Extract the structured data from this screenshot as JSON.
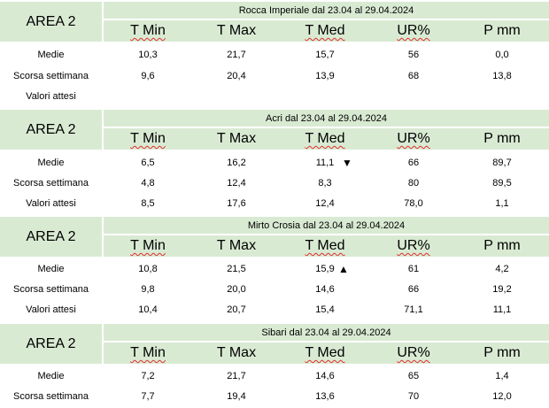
{
  "headers": [
    "T Min",
    "T Max",
    "T Med",
    "UR%",
    "P mm"
  ],
  "blocks": [
    {
      "area": "AREA 2",
      "title": "Rocca Imperiale  dal 23.04 al 29.04.2024",
      "rows": [
        {
          "label": "Medie",
          "values": [
            "10,3",
            "21,7",
            "15,7",
            "56",
            "0,0"
          ]
        },
        {
          "label": "Scorsa settimana",
          "values": [
            "9,6",
            "20,4",
            "13,9",
            "68",
            "13,8"
          ]
        },
        {
          "label": "Valori attesi",
          "values": [
            "",
            "",
            "",
            "",
            ""
          ]
        }
      ]
    },
    {
      "area": "AREA 2",
      "title": "Acri dal 23.04 al 29.04.2024",
      "arrow": "▼",
      "rows": [
        {
          "label": "Medie",
          "values": [
            "6,5",
            "16,2",
            "11,1",
            "66",
            "89,7"
          ]
        },
        {
          "label": "Scorsa settimana",
          "values": [
            "4,8",
            "12,4",
            "8,3",
            "80",
            "89,5"
          ]
        },
        {
          "label": "Valori attesi",
          "values": [
            "8,5",
            "17,6",
            "12,4",
            "78,0",
            "1,1"
          ]
        }
      ]
    },
    {
      "area": "AREA 2",
      "title": "Mirto Crosia dal 23.04 al 29.04.2024",
      "arrow": "▲",
      "rows": [
        {
          "label": "Medie",
          "values": [
            "10,8",
            "21,5",
            "15,9",
            "61",
            "4,2"
          ]
        },
        {
          "label": "Scorsa settimana",
          "values": [
            "9,8",
            "20,0",
            "14,6",
            "66",
            "19,2"
          ]
        },
        {
          "label": "Valori attesi",
          "values": [
            "10,4",
            "20,7",
            "15,4",
            "71,1",
            "11,1"
          ]
        }
      ]
    },
    {
      "area": "AREA 2",
      "title": "Sibari dal 23.04 al 29.04.2024",
      "rows": [
        {
          "label": "Medie",
          "values": [
            "7,2",
            "21,7",
            "14,6",
            "65",
            "1,4"
          ]
        },
        {
          "label": "Scorsa settimana",
          "values": [
            "7,7",
            "19,4",
            "13,6",
            "70",
            "12,0"
          ]
        }
      ]
    }
  ],
  "colors": {
    "header_bg": "#d9ead3",
    "squiggle": "#e03030"
  }
}
